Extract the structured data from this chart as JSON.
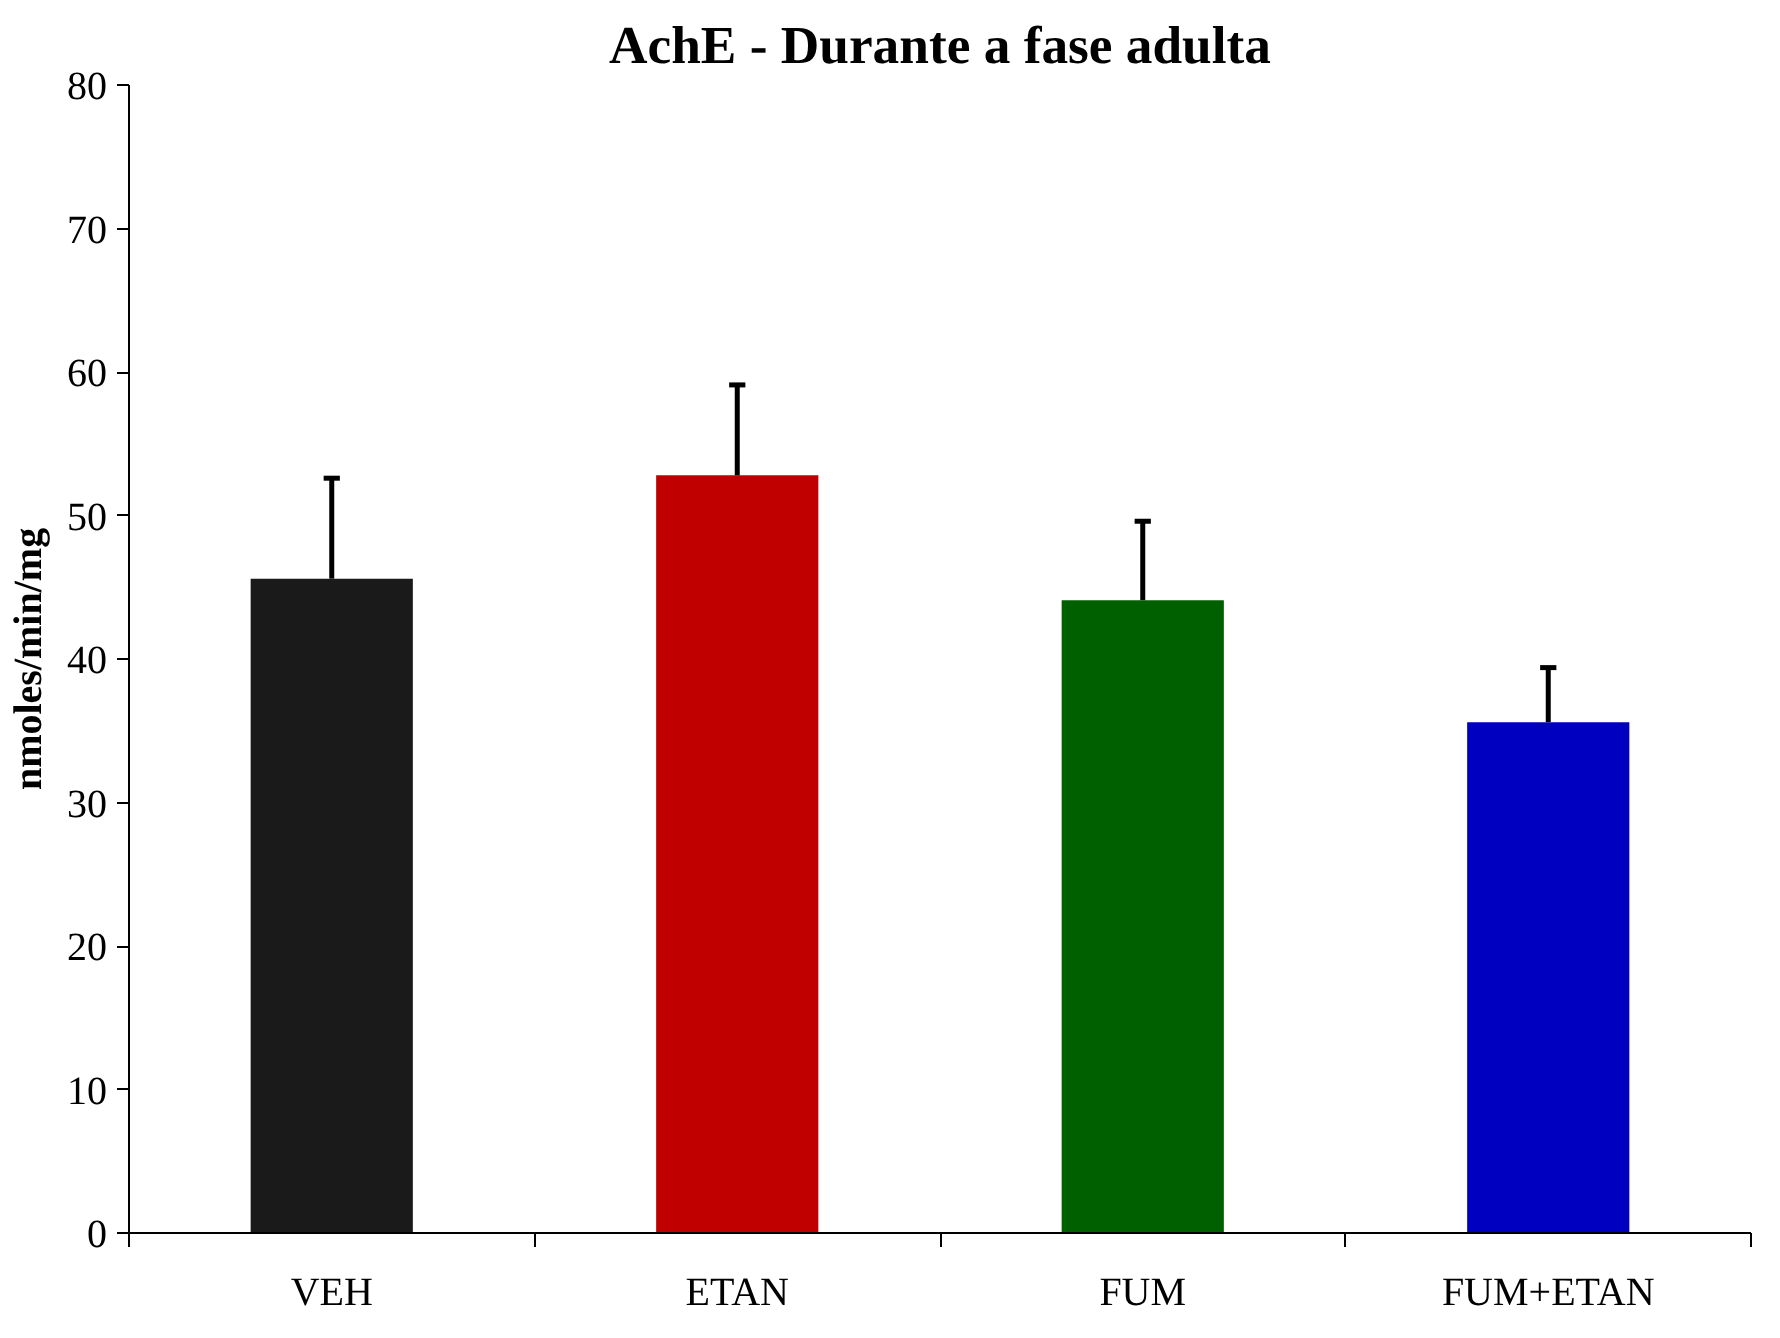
{
  "chart_data": {
    "type": "bar",
    "title": "AchE - Durante a fase adulta",
    "ylabel": "nmoles/min/mg",
    "categories": [
      "VEH",
      "ETAN",
      "FUM",
      "FUM+ETAN"
    ],
    "values": [
      45.6,
      52.8,
      44.1,
      35.6
    ],
    "colors": [
      "#1a1a1a",
      "#c00000",
      "#006000",
      "#0000c0"
    ],
    "errors": [
      [
        45.6,
        52.6
      ],
      [
        52.8,
        59.1
      ],
      [
        44.1,
        49.6
      ],
      [
        35.6,
        39.4
      ]
    ],
    "ylim": [
      0,
      80
    ],
    "yticks": [
      0,
      10,
      20,
      30,
      40,
      50,
      60,
      70,
      80
    ],
    "grid": false
  }
}
